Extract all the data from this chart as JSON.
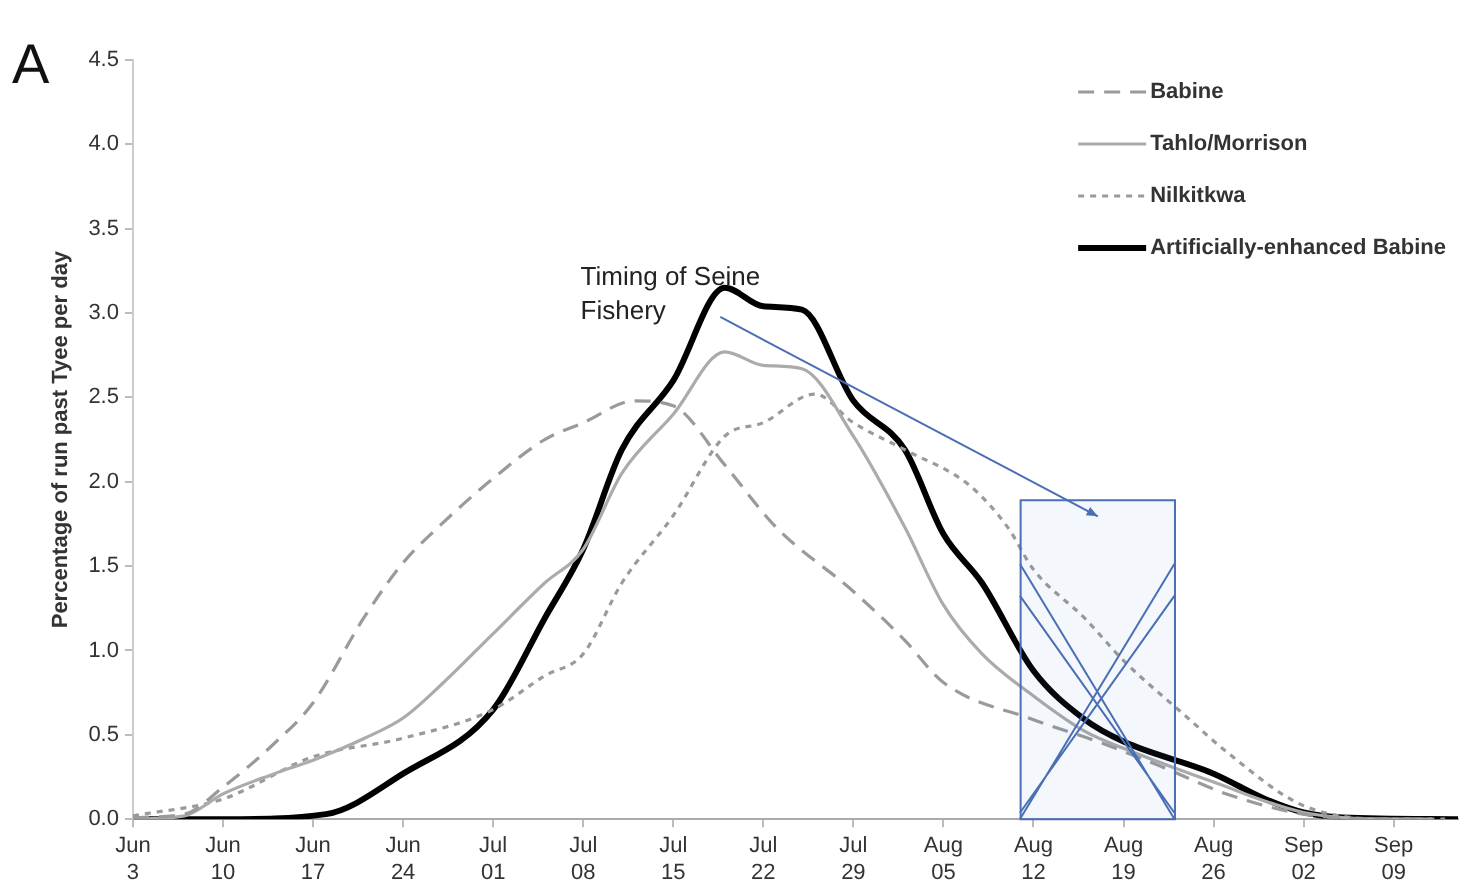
{
  "chart_data": {
    "type": "line",
    "ylabel": "Percentage of run past Tyee per day",
    "annotations": [
      "A"
    ],
    "xlim": [
      "--06-03",
      "--09-14"
    ],
    "xticks": [
      {
        "value": "--06-03",
        "label": "Jun 3"
      },
      {
        "value": "--06-10",
        "label": "Jun 10"
      },
      {
        "value": "--06-17",
        "label": "Jun 17"
      },
      {
        "value": "--06-24",
        "label": "Jun 24"
      },
      {
        "value": "--07-01",
        "label": "Jul 01"
      },
      {
        "value": "--07-08",
        "label": "Jul 08"
      },
      {
        "value": "--07-15",
        "label": "Jul 15"
      },
      {
        "value": "--07-22",
        "label": "Jul 22"
      },
      {
        "value": "--07-29",
        "label": "Jul 29"
      },
      {
        "value": "--08-05",
        "label": "Aug 05"
      },
      {
        "value": "--08-12",
        "label": "Aug 12"
      },
      {
        "value": "--08-19",
        "label": "Aug 19"
      },
      {
        "value": "--08-26",
        "label": "Aug 26"
      },
      {
        "value": "--09-02",
        "label": "Sep 02"
      },
      {
        "value": "--09-09",
        "label": "Sep 09"
      }
    ],
    "ylim": [
      0,
      4.5
    ],
    "yticks": [
      {
        "value": 0,
        "label": "0.0"
      },
      0.5,
      {
        "value": 1,
        "label": "1.0"
      },
      1.5,
      {
        "value": 2,
        "label": "2.0"
      },
      2.5,
      {
        "value": 3,
        "label": "3.0"
      },
      3.5,
      {
        "value": 4,
        "label": "4.0"
      },
      4.5
    ],
    "grid": false,
    "legend": "top right",
    "marker": "none",
    "bands": [
      {
        "axis": "x",
        "from": "--08-11",
        "to": "--08-23",
        "label": "Timing of Seine Fishery",
        "color": "#4a6fb5"
      }
    ],
    "series": [
      {
        "name": "Babine",
        "color": "#9a9a9a",
        "line_style": "dashed",
        "x": [
          "--06-03",
          "--06-07",
          "--06-10",
          "--06-14",
          "--06-17",
          "--06-21",
          "--06-24",
          "--06-27",
          "--07-01",
          "--07-05",
          "--07-08",
          "--07-12",
          "--07-15",
          "--07-19",
          "--07-23",
          "--07-29",
          "--08-02",
          "--08-05",
          "--08-12",
          "--08-17",
          "--08-22",
          "--08-27",
          "--09-02",
          "--09-09",
          "--09-11"
        ],
        "values": [
          0.01,
          0.03,
          0.19,
          0.45,
          0.69,
          1.2,
          1.52,
          1.75,
          2.02,
          2.25,
          2.35,
          2.48,
          2.45,
          2.1,
          1.73,
          1.35,
          1.06,
          0.81,
          0.59,
          0.46,
          0.31,
          0.15,
          0.03,
          0,
          0
        ]
      },
      {
        "name": "Tahlo/Morrison",
        "color": "#ababab",
        "line_style": "solid",
        "x": [
          "--06-03",
          "--06-07",
          "--06-10",
          "--06-14",
          "--06-17",
          "--06-21",
          "--06-24",
          "--06-27",
          "--07-01",
          "--07-05",
          "--07-08",
          "--07-11",
          "--07-15",
          "--07-19",
          "--07-22",
          "--07-25",
          "--07-29",
          "--08-02",
          "--08-05",
          "--08-08",
          "--08-12",
          "--08-16",
          "--08-19",
          "--08-26",
          "--09-02",
          "--09-09",
          "--09-12"
        ],
        "values": [
          0,
          0.02,
          0.15,
          0.27,
          0.35,
          0.48,
          0.6,
          0.8,
          1.1,
          1.4,
          1.6,
          2.05,
          2.4,
          2.77,
          2.69,
          2.67,
          2.27,
          1.73,
          1.27,
          0.98,
          0.73,
          0.52,
          0.42,
          0.22,
          0.04,
          0,
          0
        ]
      },
      {
        "name": "Nilkitkwa",
        "color": "#9a9a9a",
        "line_style": "dotted",
        "x": [
          "--06-03",
          "--06-10",
          "--06-17",
          "--06-24",
          "--07-01",
          "--07-05",
          "--07-08",
          "--07-11",
          "--07-15",
          "--07-19",
          "--07-22",
          "--07-26",
          "--07-29",
          "--08-02",
          "--08-07",
          "--08-10",
          "--08-12",
          "--08-16",
          "--08-19",
          "--08-24",
          "--08-27",
          "--09-02",
          "--09-09",
          "--09-13"
        ],
        "values": [
          0.02,
          0.12,
          0.37,
          0.48,
          0.65,
          0.85,
          0.98,
          1.4,
          1.8,
          2.27,
          2.35,
          2.52,
          2.35,
          2.19,
          1.98,
          1.73,
          1.48,
          1.19,
          0.94,
          0.6,
          0.4,
          0.08,
          0,
          0
        ]
      },
      {
        "name": "Artificially-enhanced Babine",
        "color": "#000000",
        "line_style": "solid",
        "x": [
          "--06-03",
          "--06-10",
          "--06-18",
          "--06-24",
          "--07-01",
          "--07-05",
          "--07-08",
          "--07-11",
          "--07-15",
          "--07-19",
          "--07-22",
          "--07-25",
          "--07-29",
          "--08-02",
          "--08-05",
          "--08-08",
          "--08-12",
          "--08-16",
          "--08-19",
          "--08-26",
          "--08-30",
          "--09-02",
          "--09-05",
          "--09-14"
        ],
        "values": [
          0,
          0,
          0.03,
          0.27,
          0.65,
          1.19,
          1.6,
          2.19,
          2.6,
          3.15,
          3.04,
          3.02,
          2.48,
          2.19,
          1.69,
          1.4,
          0.88,
          0.59,
          0.46,
          0.27,
          0.12,
          0.04,
          0.01,
          0
        ]
      }
    ]
  }
}
